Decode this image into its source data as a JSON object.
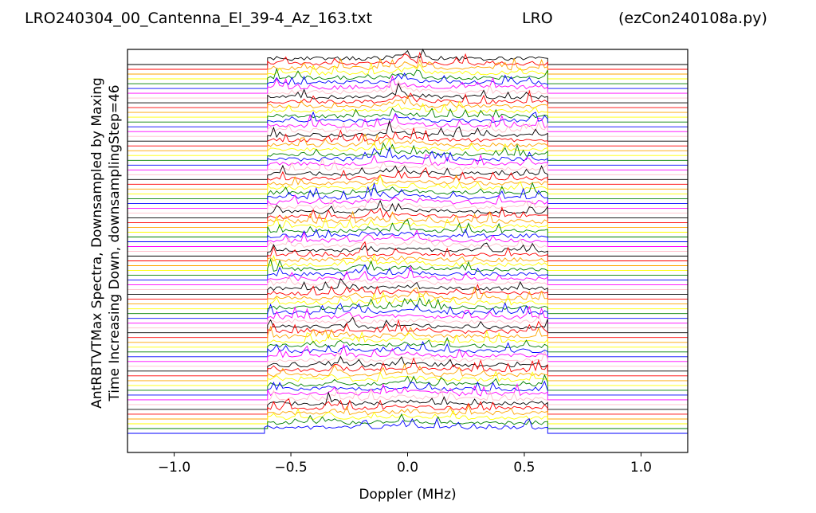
{
  "header": {
    "file_title": "LRO240304_00_Cantenna_El_39-4_Az_163.txt",
    "station": "LRO",
    "program": "(ezCon240108a.py)"
  },
  "chart_data": {
    "type": "line",
    "title": "LRO240304_00_Cantenna_El_39-4_Az_163.txt",
    "xlabel": "Doppler (MHz)",
    "ylabel_lines": [
      "AntRBTVTMax Spectra, Downsampled by Maxing",
      "Time Increasing Down, downsamplingStep=46"
    ],
    "xlim": [
      -1.2,
      1.2
    ],
    "x_ticks": [
      -1.0,
      -0.5,
      0.0,
      0.5,
      1.0
    ],
    "x_tick_labels": [
      "−1.0",
      "−0.5",
      "0.0",
      "0.5",
      "1.0"
    ],
    "y_ticks_shown": false,
    "grid": false,
    "series_count": 78,
    "trace_color_cycle": [
      "#000000",
      "#ff0000",
      "#ffa500",
      "#ffff00",
      "#008000",
      "#0000ff",
      "#ff00ff",
      "#ffc0cb"
    ],
    "band_mhz": [
      -0.6,
      0.6
    ],
    "first_series_nonzero_mhz": [
      -0.613,
      0.6
    ],
    "baseline_extent_mhz": [
      -1.2,
      1.2
    ]
  }
}
